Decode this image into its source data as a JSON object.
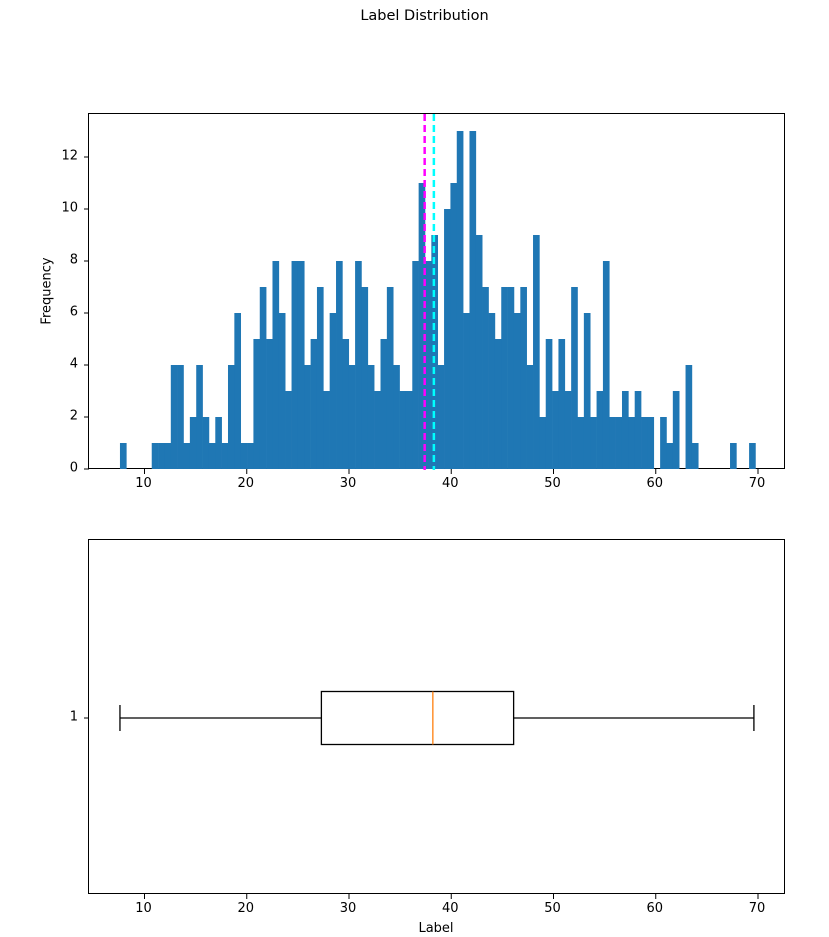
{
  "figure": {
    "title": "Label Distribution"
  },
  "chart_data": [
    {
      "type": "bar",
      "subtype": "histogram",
      "title": "",
      "xlabel": "",
      "ylabel": "Frequency",
      "bins": 100,
      "bin_start": 7.6,
      "bin_width": 0.6215,
      "xlim": [
        4.6,
        72.7
      ],
      "ylim": [
        0,
        13.65
      ],
      "xticks": [
        10,
        20,
        30,
        40,
        50,
        60,
        70
      ],
      "yticks": [
        0,
        2,
        4,
        6,
        8,
        10,
        12
      ],
      "color": "#1f77b4",
      "values": [
        1,
        0,
        0,
        0,
        0,
        1,
        1,
        1,
        4,
        4,
        1,
        2,
        4,
        2,
        1,
        2,
        1,
        4,
        6,
        1,
        1,
        5,
        7,
        5,
        8,
        6,
        3,
        8,
        8,
        4,
        5,
        7,
        3,
        6,
        8,
        5,
        4,
        8,
        7,
        4,
        3,
        5,
        7,
        4,
        3,
        3,
        8,
        11,
        8,
        9,
        4,
        10,
        11,
        13,
        6,
        13,
        9,
        7,
        6,
        5,
        7,
        7,
        6,
        7,
        4,
        9,
        2,
        5,
        3,
        5,
        3,
        7,
        2,
        6,
        2,
        3,
        8,
        2,
        2,
        3,
        2,
        3,
        2,
        2,
        0,
        2,
        1,
        3,
        0,
        4,
        1,
        0,
        0,
        0,
        0,
        0,
        1,
        0,
        0,
        1
      ],
      "reference_lines": [
        {
          "name": "mean",
          "x": 37.4,
          "color": "#ff00ff",
          "style": "dashed"
        },
        {
          "name": "median",
          "x": 38.3,
          "color": "#00ffff",
          "style": "dashed"
        }
      ],
      "grid": false
    },
    {
      "type": "boxplot",
      "orientation": "horizontal",
      "xlabel": "Label",
      "ylabel": "",
      "xlim": [
        4.6,
        72.7
      ],
      "xticks": [
        10,
        20,
        30,
        40,
        50,
        60,
        70
      ],
      "yticks": [
        1
      ],
      "ytick_labels": [
        "1"
      ],
      "min": 7.6,
      "q1": 27.3,
      "median": 38.2,
      "q3": 46.1,
      "max": 69.6,
      "median_color": "#ff7f0e",
      "grid": false
    }
  ]
}
